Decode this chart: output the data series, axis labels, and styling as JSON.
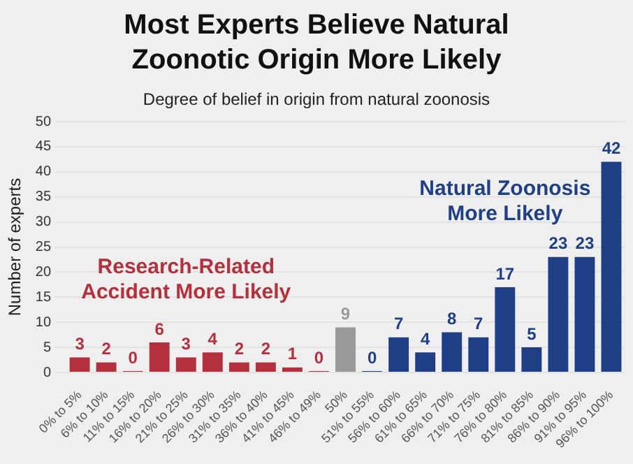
{
  "chart_data": {
    "type": "bar",
    "title": "Most Experts Believe Natural Zoonotic Origin More Likely",
    "subtitle": "Degree of belief in origin from natural zoonosis",
    "ylabel": "Number of experts",
    "categories": [
      "0% to 5%",
      "6% to 10%",
      "11% to 15%",
      "16% to 20%",
      "21% to 25%",
      "26% to 30%",
      "31% to 35%",
      "36% to 40%",
      "41% to 45%",
      "46% to 49%",
      "50%",
      "51% to 55%",
      "56% to 60%",
      "61% to 65%",
      "66% to 70%",
      "71% to 75%",
      "76% to 80%",
      "81% to 85%",
      "86% to 90%",
      "91% to 95%",
      "96% to 100%"
    ],
    "values": [
      3,
      2,
      0,
      6,
      3,
      4,
      2,
      2,
      1,
      0,
      9,
      0,
      7,
      4,
      8,
      7,
      17,
      5,
      23,
      23,
      42
    ],
    "colors": [
      "#b3303c",
      "#b3303c",
      "#b3303c",
      "#b3303c",
      "#b3303c",
      "#b3303c",
      "#b3303c",
      "#b3303c",
      "#b3303c",
      "#b3303c",
      "#9a9a9a",
      "#1f3f87",
      "#1f3f87",
      "#1f3f87",
      "#1f3f87",
      "#1f3f87",
      "#1f3f87",
      "#1f3f87",
      "#1f3f87",
      "#1f3f87",
      "#1f3f87"
    ],
    "ylim": [
      0,
      50
    ],
    "yticks": [
      0,
      5,
      10,
      15,
      20,
      25,
      30,
      35,
      40,
      45,
      50
    ],
    "grid": "y",
    "data_labels": true,
    "legend": false,
    "annotations": [
      "Research-Related\nAccident More Likely",
      "Natural Zoonosis\nMore Likely"
    ]
  }
}
